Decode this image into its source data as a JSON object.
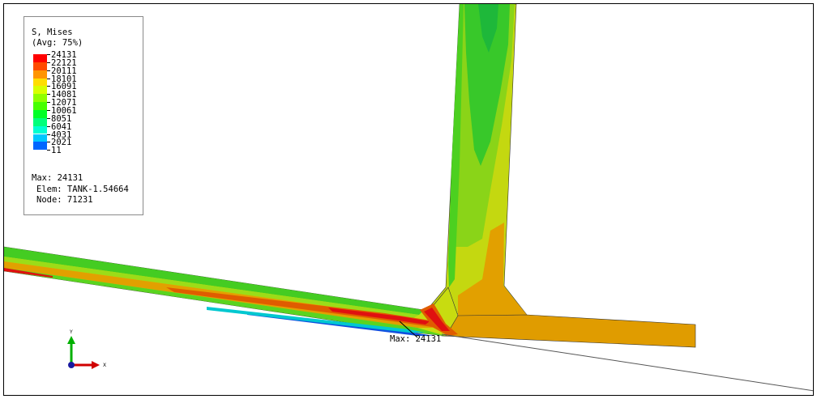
{
  "legend": {
    "title": "S, Mises",
    "subtitle": "(Avg: 75%)",
    "levels": [
      {
        "value": "24131",
        "color": "#ff0000"
      },
      {
        "value": "22121",
        "color": "#ff4a00"
      },
      {
        "value": "20111",
        "color": "#ff9400"
      },
      {
        "value": "18101",
        "color": "#ffdd00"
      },
      {
        "value": "16091",
        "color": "#d8ff00"
      },
      {
        "value": "14081",
        "color": "#8fff00"
      },
      {
        "value": "12071",
        "color": "#46ff00"
      },
      {
        "value": "10061",
        "color": "#00ff27"
      },
      {
        "value": "8051",
        "color": "#00ff7a"
      },
      {
        "value": "6041",
        "color": "#00ffd1"
      },
      {
        "value": "4031",
        "color": "#00c8ff"
      },
      {
        "value": "2021",
        "color": "#0066ff"
      },
      {
        "value": "11",
        "color": "#0000ff"
      }
    ],
    "max_line": "Max: 24131",
    "elem_line": "Elem: TANK-1.54664",
    "node_line": "Node: 71231"
  },
  "annotation": {
    "max_label": "Max: 24131"
  },
  "triad": {
    "y_label": "Y",
    "x_label": "X",
    "y_color": "#00b000",
    "x_color": "#d00000",
    "origin_color": "#1a1aa0"
  },
  "colors": {
    "green": "#3fd020",
    "dark_green": "#1ec028",
    "yellow_green": "#c8dc10",
    "light_green": "#90dc18",
    "orange": "#e2a000",
    "dark_orange": "#e06400",
    "red": "#e01010",
    "blue": "#1050e0"
  }
}
